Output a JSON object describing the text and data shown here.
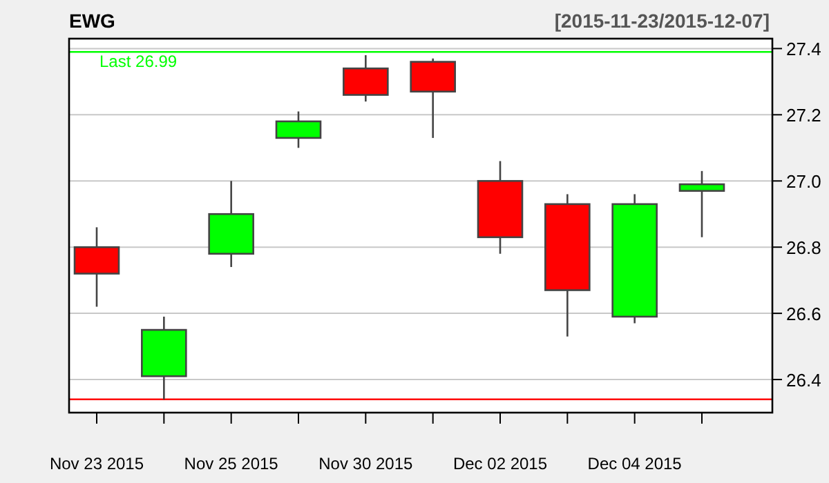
{
  "chart_data": {
    "type": "candlestick",
    "title": "EWG",
    "subtitle": "[2015-11-23/2015-12-07]",
    "categories": [
      "Nov 23 2015",
      null,
      "Nov 25 2015",
      null,
      "Nov 30 2015",
      null,
      "Dec 02 2015",
      null,
      "Dec 04 2015",
      null
    ],
    "ohlc": [
      [
        26.8,
        26.86,
        26.62,
        26.72
      ],
      [
        26.41,
        26.59,
        26.34,
        26.55
      ],
      [
        26.78,
        27.0,
        26.74,
        26.9
      ],
      [
        27.13,
        27.21,
        27.1,
        27.18
      ],
      [
        27.34,
        27.38,
        27.24,
        27.26
      ],
      [
        27.36,
        27.37,
        27.13,
        27.27
      ],
      [
        27.0,
        27.06,
        26.78,
        26.83
      ],
      [
        26.93,
        26.96,
        26.53,
        26.67
      ],
      [
        26.59,
        26.96,
        26.57,
        26.93
      ],
      [
        26.97,
        27.03,
        26.83,
        26.99
      ]
    ],
    "colors": [
      "#ff0000",
      "#00ff00",
      "#00ff00",
      "#00ff00",
      "#ff0000",
      "#ff0000",
      "#ff0000",
      "#ff0000",
      "#00ff00",
      "#00ff00"
    ],
    "ylim": [
      26.3,
      27.43
    ],
    "yticks": [
      {
        "value": 26.4,
        "label": "26.4"
      },
      {
        "value": 26.6,
        "label": "26.6"
      },
      {
        "value": 26.8,
        "label": "26.8"
      },
      {
        "value": 27,
        "label": "27.0"
      },
      {
        "value": 27.2,
        "label": "27.2"
      },
      {
        "value": 27.4,
        "label": "27.4"
      }
    ],
    "grid": "y",
    "ref_lines": [
      {
        "axis": "y",
        "value": 27.39,
        "label": "Last 26.99",
        "color": "#00ff00"
      },
      {
        "axis": "y",
        "value": 26.34,
        "color": "#ff0000"
      }
    ]
  }
}
